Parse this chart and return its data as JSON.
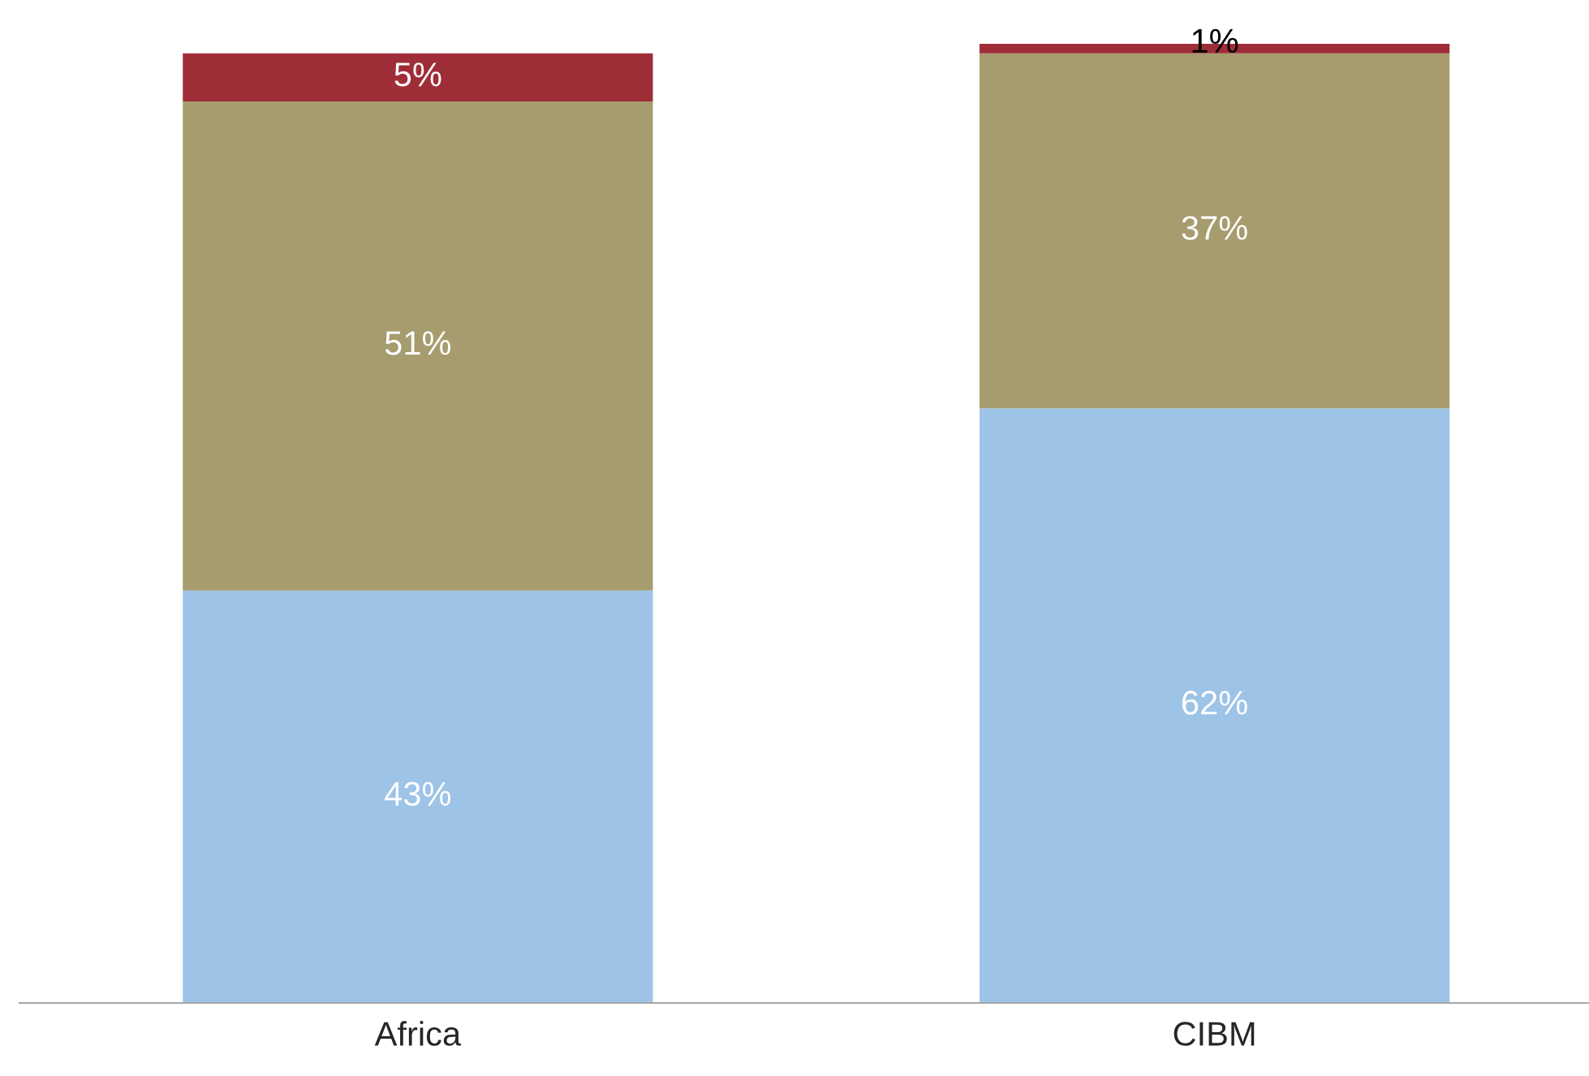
{
  "chart_data": {
    "type": "bar",
    "stacked": true,
    "categories": [
      "Africa",
      "CIBM"
    ],
    "series": [
      {
        "color": "#9dc4e7",
        "values": [
          43,
          62
        ],
        "value_labels": [
          "43%",
          "62%"
        ]
      },
      {
        "color": "#a69c6e",
        "values": [
          51,
          37
        ],
        "value_labels": [
          "51%",
          "37%"
        ]
      },
      {
        "color": "#9f2d38",
        "values": [
          5,
          1
        ],
        "value_labels": [
          "5%",
          "1%"
        ]
      }
    ],
    "ylim": [
      0,
      100
    ],
    "tick_labels": "x",
    "grid": false,
    "legend": false
  }
}
